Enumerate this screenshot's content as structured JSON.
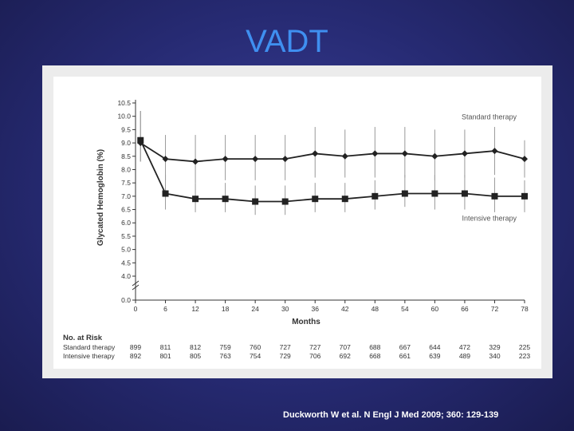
{
  "slide": {
    "title": "VADT",
    "citation": "Duckworth W et al. N Engl J Med 2009; 360: 129-139"
  },
  "colors": {
    "background": "#262a72",
    "title": "#3f8ff0",
    "standard_line": "#222222",
    "intensive_line": "#222222",
    "error_bar": "#999999"
  },
  "chart_data": {
    "type": "line",
    "xlabel": "Months",
    "ylabel": "Glycated Hemoglobin (%)",
    "x": [
      0,
      6,
      12,
      18,
      24,
      30,
      36,
      42,
      48,
      54,
      60,
      66,
      72,
      78
    ],
    "x_ticks": [
      0,
      6,
      12,
      18,
      24,
      30,
      36,
      42,
      48,
      54,
      60,
      66,
      72,
      78
    ],
    "xlim": [
      0,
      78
    ],
    "y_ticks": [
      "0.0",
      "4.0",
      "4.5",
      "5.0",
      "5.5",
      "6.0",
      "6.5",
      "7.0",
      "7.5",
      "8.0",
      "8.5",
      "9.0",
      "9.5",
      "10.0",
      "10.5"
    ],
    "ylim": [
      4.0,
      10.5
    ],
    "axis_break": true,
    "series": [
      {
        "name": "Standard therapy",
        "marker": "diamond",
        "x": [
          1,
          6,
          12,
          18,
          24,
          30,
          36,
          42,
          48,
          54,
          60,
          66,
          72,
          78
        ],
        "values": [
          9.0,
          8.4,
          8.3,
          8.4,
          8.4,
          8.4,
          8.6,
          8.5,
          8.6,
          8.6,
          8.5,
          8.6,
          8.7,
          8.4
        ],
        "error_low": [
          8.3,
          7.6,
          7.5,
          7.6,
          7.6,
          7.6,
          7.7,
          7.7,
          7.7,
          7.7,
          7.6,
          7.7,
          7.8,
          7.7
        ],
        "error_high": [
          10.2,
          9.3,
          9.3,
          9.3,
          9.3,
          9.3,
          9.6,
          9.5,
          9.6,
          9.6,
          9.5,
          9.5,
          9.6,
          9.1
        ]
      },
      {
        "name": "Intensive therapy",
        "marker": "square",
        "x": [
          1,
          6,
          12,
          18,
          24,
          30,
          36,
          42,
          48,
          54,
          60,
          66,
          72,
          78
        ],
        "values": [
          9.1,
          7.1,
          6.9,
          6.9,
          6.8,
          6.8,
          6.9,
          6.9,
          7.0,
          7.1,
          7.1,
          7.1,
          7.0,
          7.0
        ],
        "error_low": [
          8.3,
          6.5,
          6.4,
          6.4,
          6.3,
          6.3,
          6.4,
          6.4,
          6.5,
          6.6,
          6.5,
          6.5,
          6.4,
          6.4
        ],
        "error_high": [
          10.2,
          7.8,
          7.5,
          7.5,
          7.4,
          7.4,
          7.5,
          7.5,
          7.6,
          7.8,
          7.8,
          7.8,
          7.7,
          7.6
        ]
      }
    ],
    "annotations": [
      "Standard therapy",
      "Intensive therapy"
    ],
    "risk_table": {
      "title": "No. at Risk",
      "rows": [
        {
          "label": "Standard therapy",
          "values": [
            "899",
            "811",
            "812",
            "759",
            "760",
            "727",
            "727",
            "707",
            "688",
            "667",
            "644",
            "472",
            "329",
            "225"
          ]
        },
        {
          "label": "Intensive therapy",
          "values": [
            "892",
            "801",
            "805",
            "763",
            "754",
            "729",
            "706",
            "692",
            "668",
            "661",
            "639",
            "489",
            "340",
            "223"
          ]
        }
      ]
    }
  }
}
